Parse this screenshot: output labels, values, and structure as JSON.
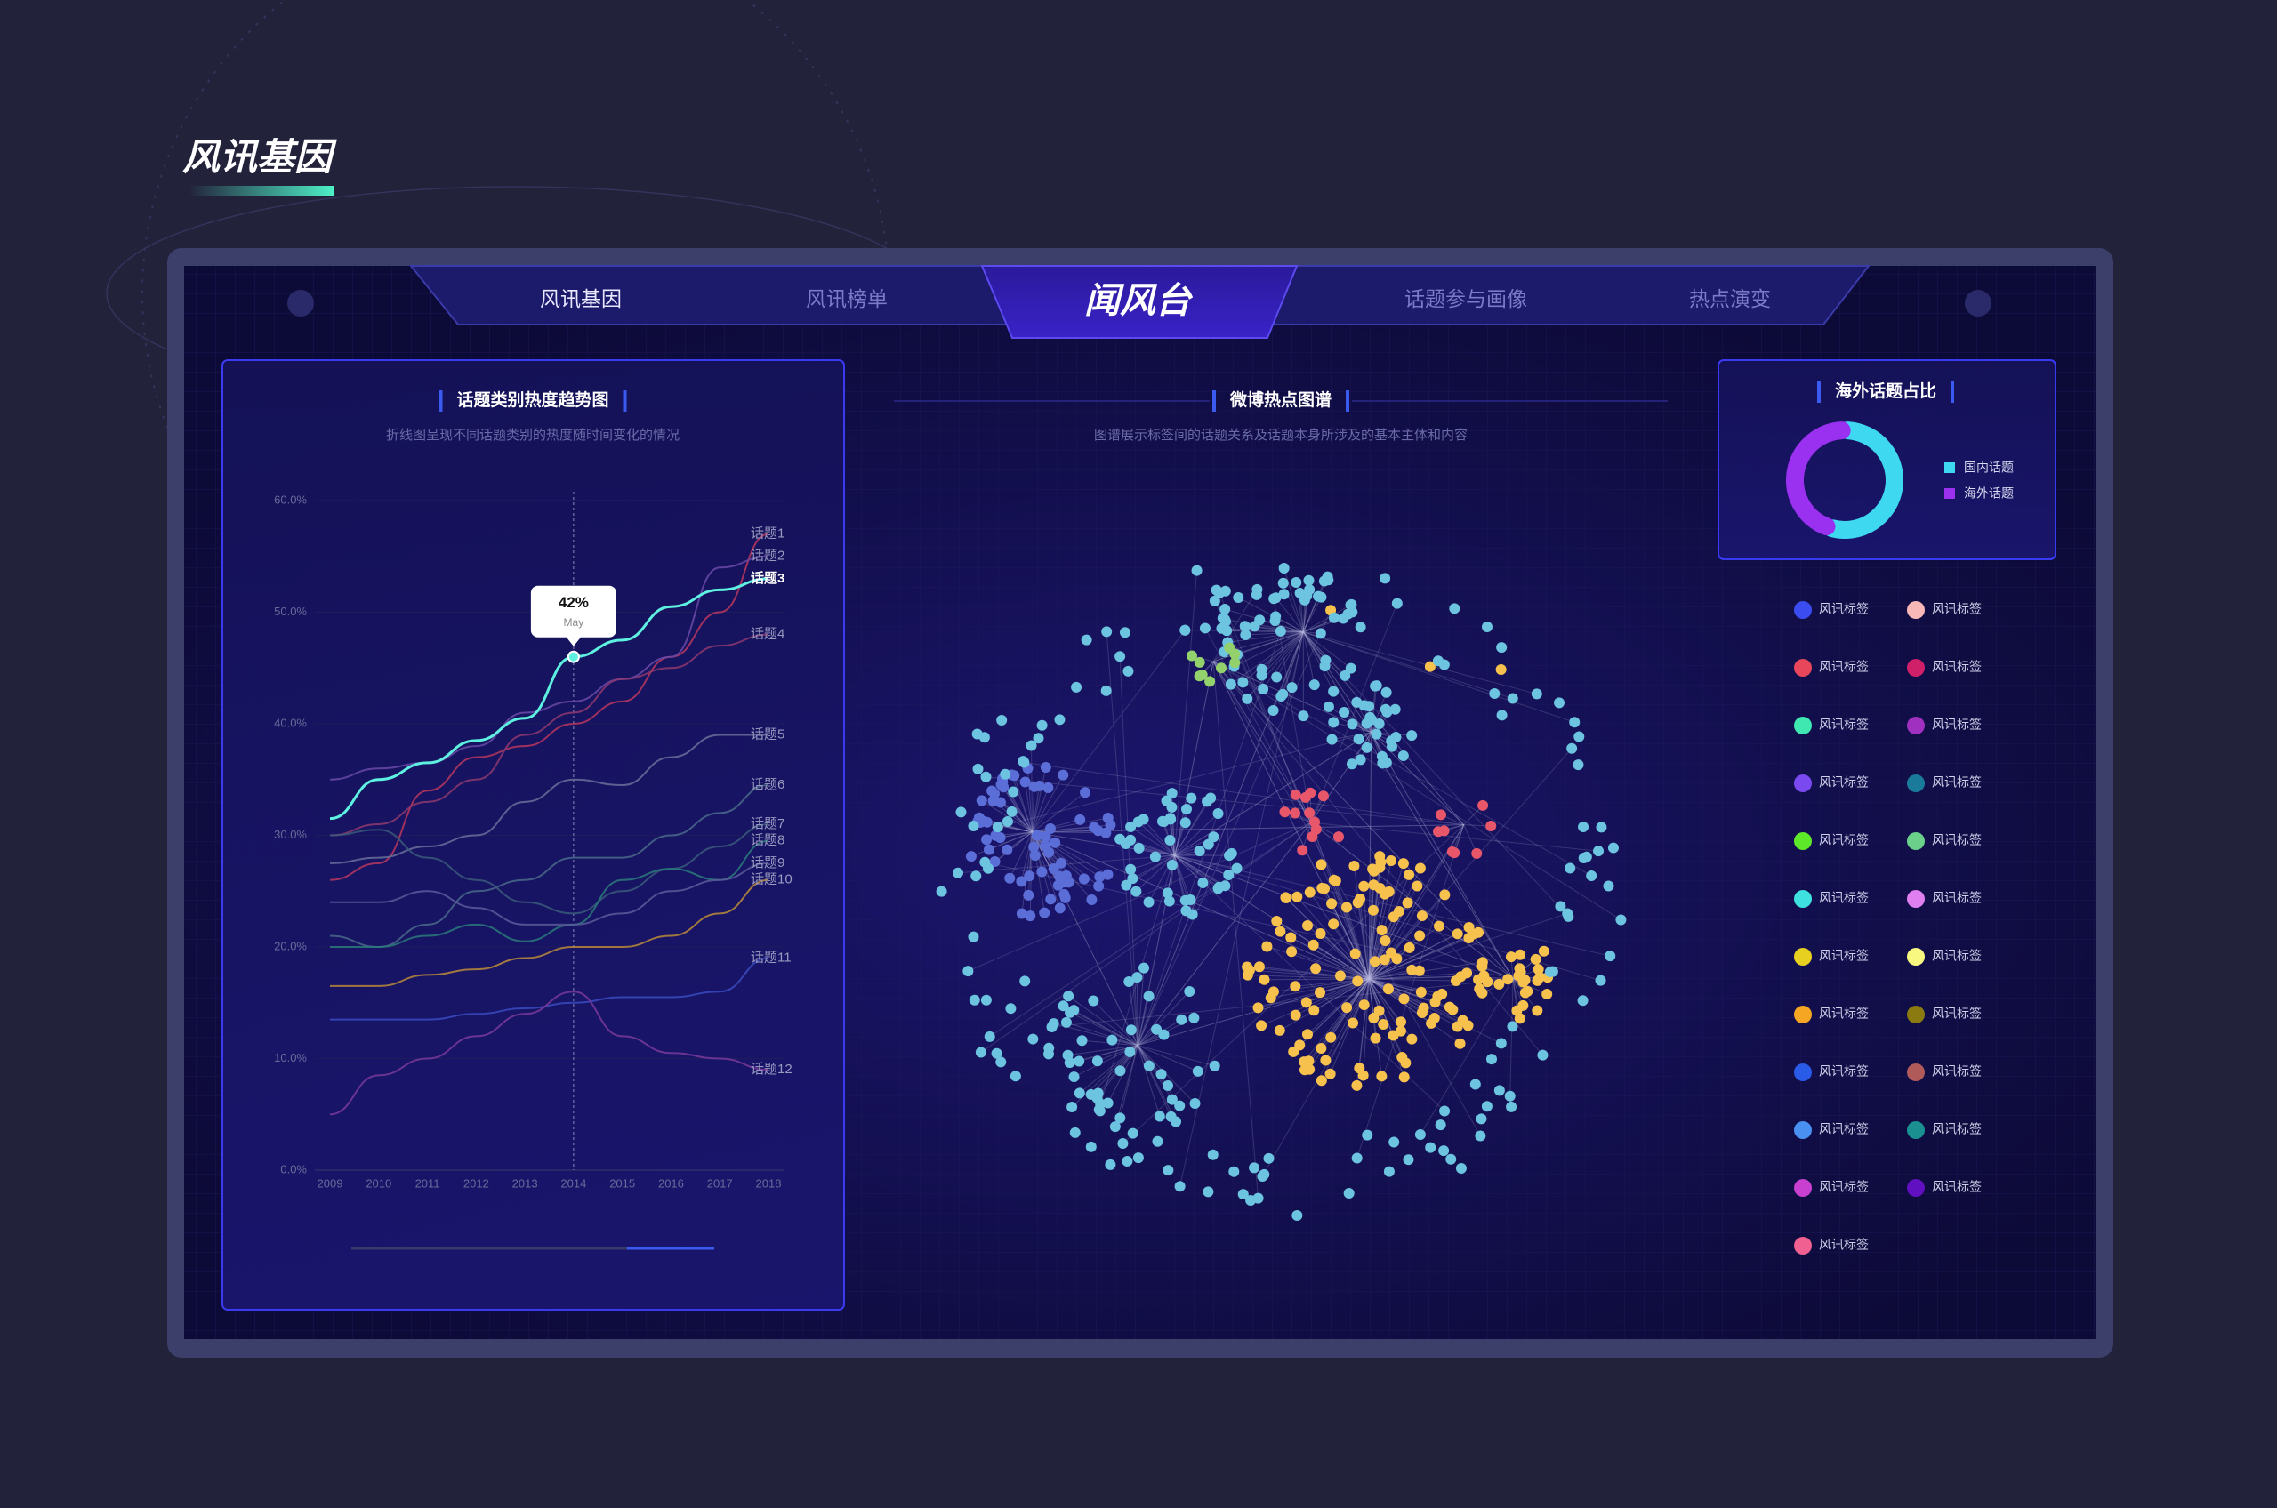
{
  "header": {
    "title": "风讯基因"
  },
  "nav": {
    "tabs": [
      "风讯基因",
      "风讯榜单",
      "闻风台",
      "话题参与画像",
      "热点演变"
    ]
  },
  "chart_data": [
    {
      "type": "line",
      "title": "话题类别热度趋势图",
      "subtitle": "折线图呈现不同话题类别的热度随时间变化的情况",
      "categories": [
        "2009",
        "2010",
        "2011",
        "2012",
        "2013",
        "2014",
        "2015",
        "2016",
        "2017",
        "2018"
      ],
      "ylim": [
        0,
        60
      ],
      "yticks": [
        {
          "value": 0,
          "label": "0.0%"
        },
        {
          "value": 10,
          "label": "10.0%"
        },
        {
          "value": 20,
          "label": "20.0%"
        },
        {
          "value": 30,
          "label": "30.0%"
        },
        {
          "value": 40,
          "label": "40.0%"
        },
        {
          "value": 50,
          "label": "50.0%"
        },
        {
          "value": 60,
          "label": "60.0%"
        }
      ],
      "grid": true,
      "annotation": {
        "text": "42%",
        "subtext": "May"
      },
      "series": [
        {
          "name": "话题1",
          "color": "#b8375e",
          "values": [
            26,
            27.5,
            34,
            37,
            38,
            40,
            42,
            46,
            50,
            57
          ]
        },
        {
          "name": "话题2",
          "color": "#6a4aa8",
          "values": [
            35,
            36,
            36.5,
            38,
            41,
            42,
            44,
            46,
            54,
            55
          ]
        },
        {
          "name": "话题3",
          "color": "#5ef0e0",
          "values": [
            31.5,
            35,
            36.5,
            38.5,
            40.5,
            46,
            47.5,
            50.5,
            52,
            53
          ]
        },
        {
          "name": "话题4",
          "color": "#8e3a6e",
          "values": [
            30,
            31,
            33,
            35,
            39,
            41,
            44,
            45,
            47,
            48
          ]
        },
        {
          "name": "话题5",
          "color": "#6a6f9a",
          "values": [
            27.5,
            28,
            29,
            30,
            33,
            35,
            34.5,
            37,
            39,
            39
          ]
        },
        {
          "name": "话题6",
          "color": "#4a6a8a",
          "values": [
            21,
            20,
            22,
            25,
            26,
            28,
            28,
            30,
            32,
            34.5
          ]
        },
        {
          "name": "话题7",
          "color": "#3a5a7a",
          "values": [
            30,
            30.5,
            28,
            26,
            24,
            23,
            25,
            27,
            29,
            31
          ]
        },
        {
          "name": "话题8",
          "color": "#2a7a7a",
          "values": [
            20,
            20,
            21,
            22,
            20.5,
            22,
            26,
            27,
            26,
            29.5
          ]
        },
        {
          "name": "话题9",
          "color": "#5a5a9a",
          "values": [
            24,
            24,
            25,
            23.5,
            22,
            22,
            23,
            25,
            26,
            27.5
          ]
        },
        {
          "name": "话题10",
          "color": "#b88a3a",
          "values": [
            16.5,
            16.5,
            17.5,
            18,
            19,
            20,
            20,
            21,
            23,
            26
          ]
        },
        {
          "name": "话题11",
          "color": "#3a4ac0",
          "values": [
            13.5,
            13.5,
            13.5,
            14,
            14.5,
            15,
            15.5,
            15.5,
            16,
            19
          ]
        },
        {
          "name": "话题12",
          "color": "#7a3a9a",
          "values": [
            5,
            8.5,
            10,
            12,
            14,
            16,
            12,
            10.5,
            10,
            9
          ]
        }
      ]
    },
    {
      "type": "network",
      "title": "微博热点图谱",
      "subtitle": "图谱展示标签间的话题关系及话题本身所涉及的基本主体和内容",
      "node_colors": [
        "#5b6ed8",
        "#6cc4e0",
        "#f7c14d",
        "#e8566a",
        "#93d16d"
      ]
    },
    {
      "type": "pie",
      "title": "海外话题占比",
      "categories": [
        "国内话题",
        "海外话题"
      ],
      "values": [
        55,
        45
      ],
      "colors": [
        "#3ed8f0",
        "#9a30f0"
      ]
    }
  ],
  "tag_legend": {
    "items": [
      {
        "label": "风讯标签",
        "color": "#3b4df0"
      },
      {
        "label": "风讯标签",
        "color": "#e8465a"
      },
      {
        "label": "风讯标签",
        "color": "#3ee8b0"
      },
      {
        "label": "风讯标签",
        "color": "#7a4af0"
      },
      {
        "label": "风讯标签",
        "color": "#5ee82a"
      },
      {
        "label": "风讯标签",
        "color": "#3ee0e0"
      },
      {
        "label": "风讯标签",
        "color": "#e8d020"
      },
      {
        "label": "风讯标签",
        "color": "#f5a623"
      },
      {
        "label": "风讯标签",
        "color": "#2a5ae8"
      },
      {
        "label": "风讯标签",
        "color": "#4a90f0"
      },
      {
        "label": "风讯标签",
        "color": "#c840d0"
      },
      {
        "label": "风讯标签",
        "color": "#f06090"
      },
      {
        "label": "风讯标签",
        "color": "#f8b8b8"
      },
      {
        "label": "风讯标签",
        "color": "#d0206a"
      },
      {
        "label": "风讯标签",
        "color": "#a030c0"
      },
      {
        "label": "风讯标签",
        "color": "#1a7a9a"
      },
      {
        "label": "风讯标签",
        "color": "#6ad08a"
      },
      {
        "label": "风讯标签",
        "color": "#e080f0"
      },
      {
        "label": "风讯标签",
        "color": "#f8f880"
      },
      {
        "label": "风讯标签",
        "color": "#8a7a10"
      },
      {
        "label": "风讯标签",
        "color": "#b05a5a"
      },
      {
        "label": "风讯标签",
        "color": "#1a9090"
      },
      {
        "label": "风讯标签",
        "color": "#6010c0"
      }
    ]
  }
}
